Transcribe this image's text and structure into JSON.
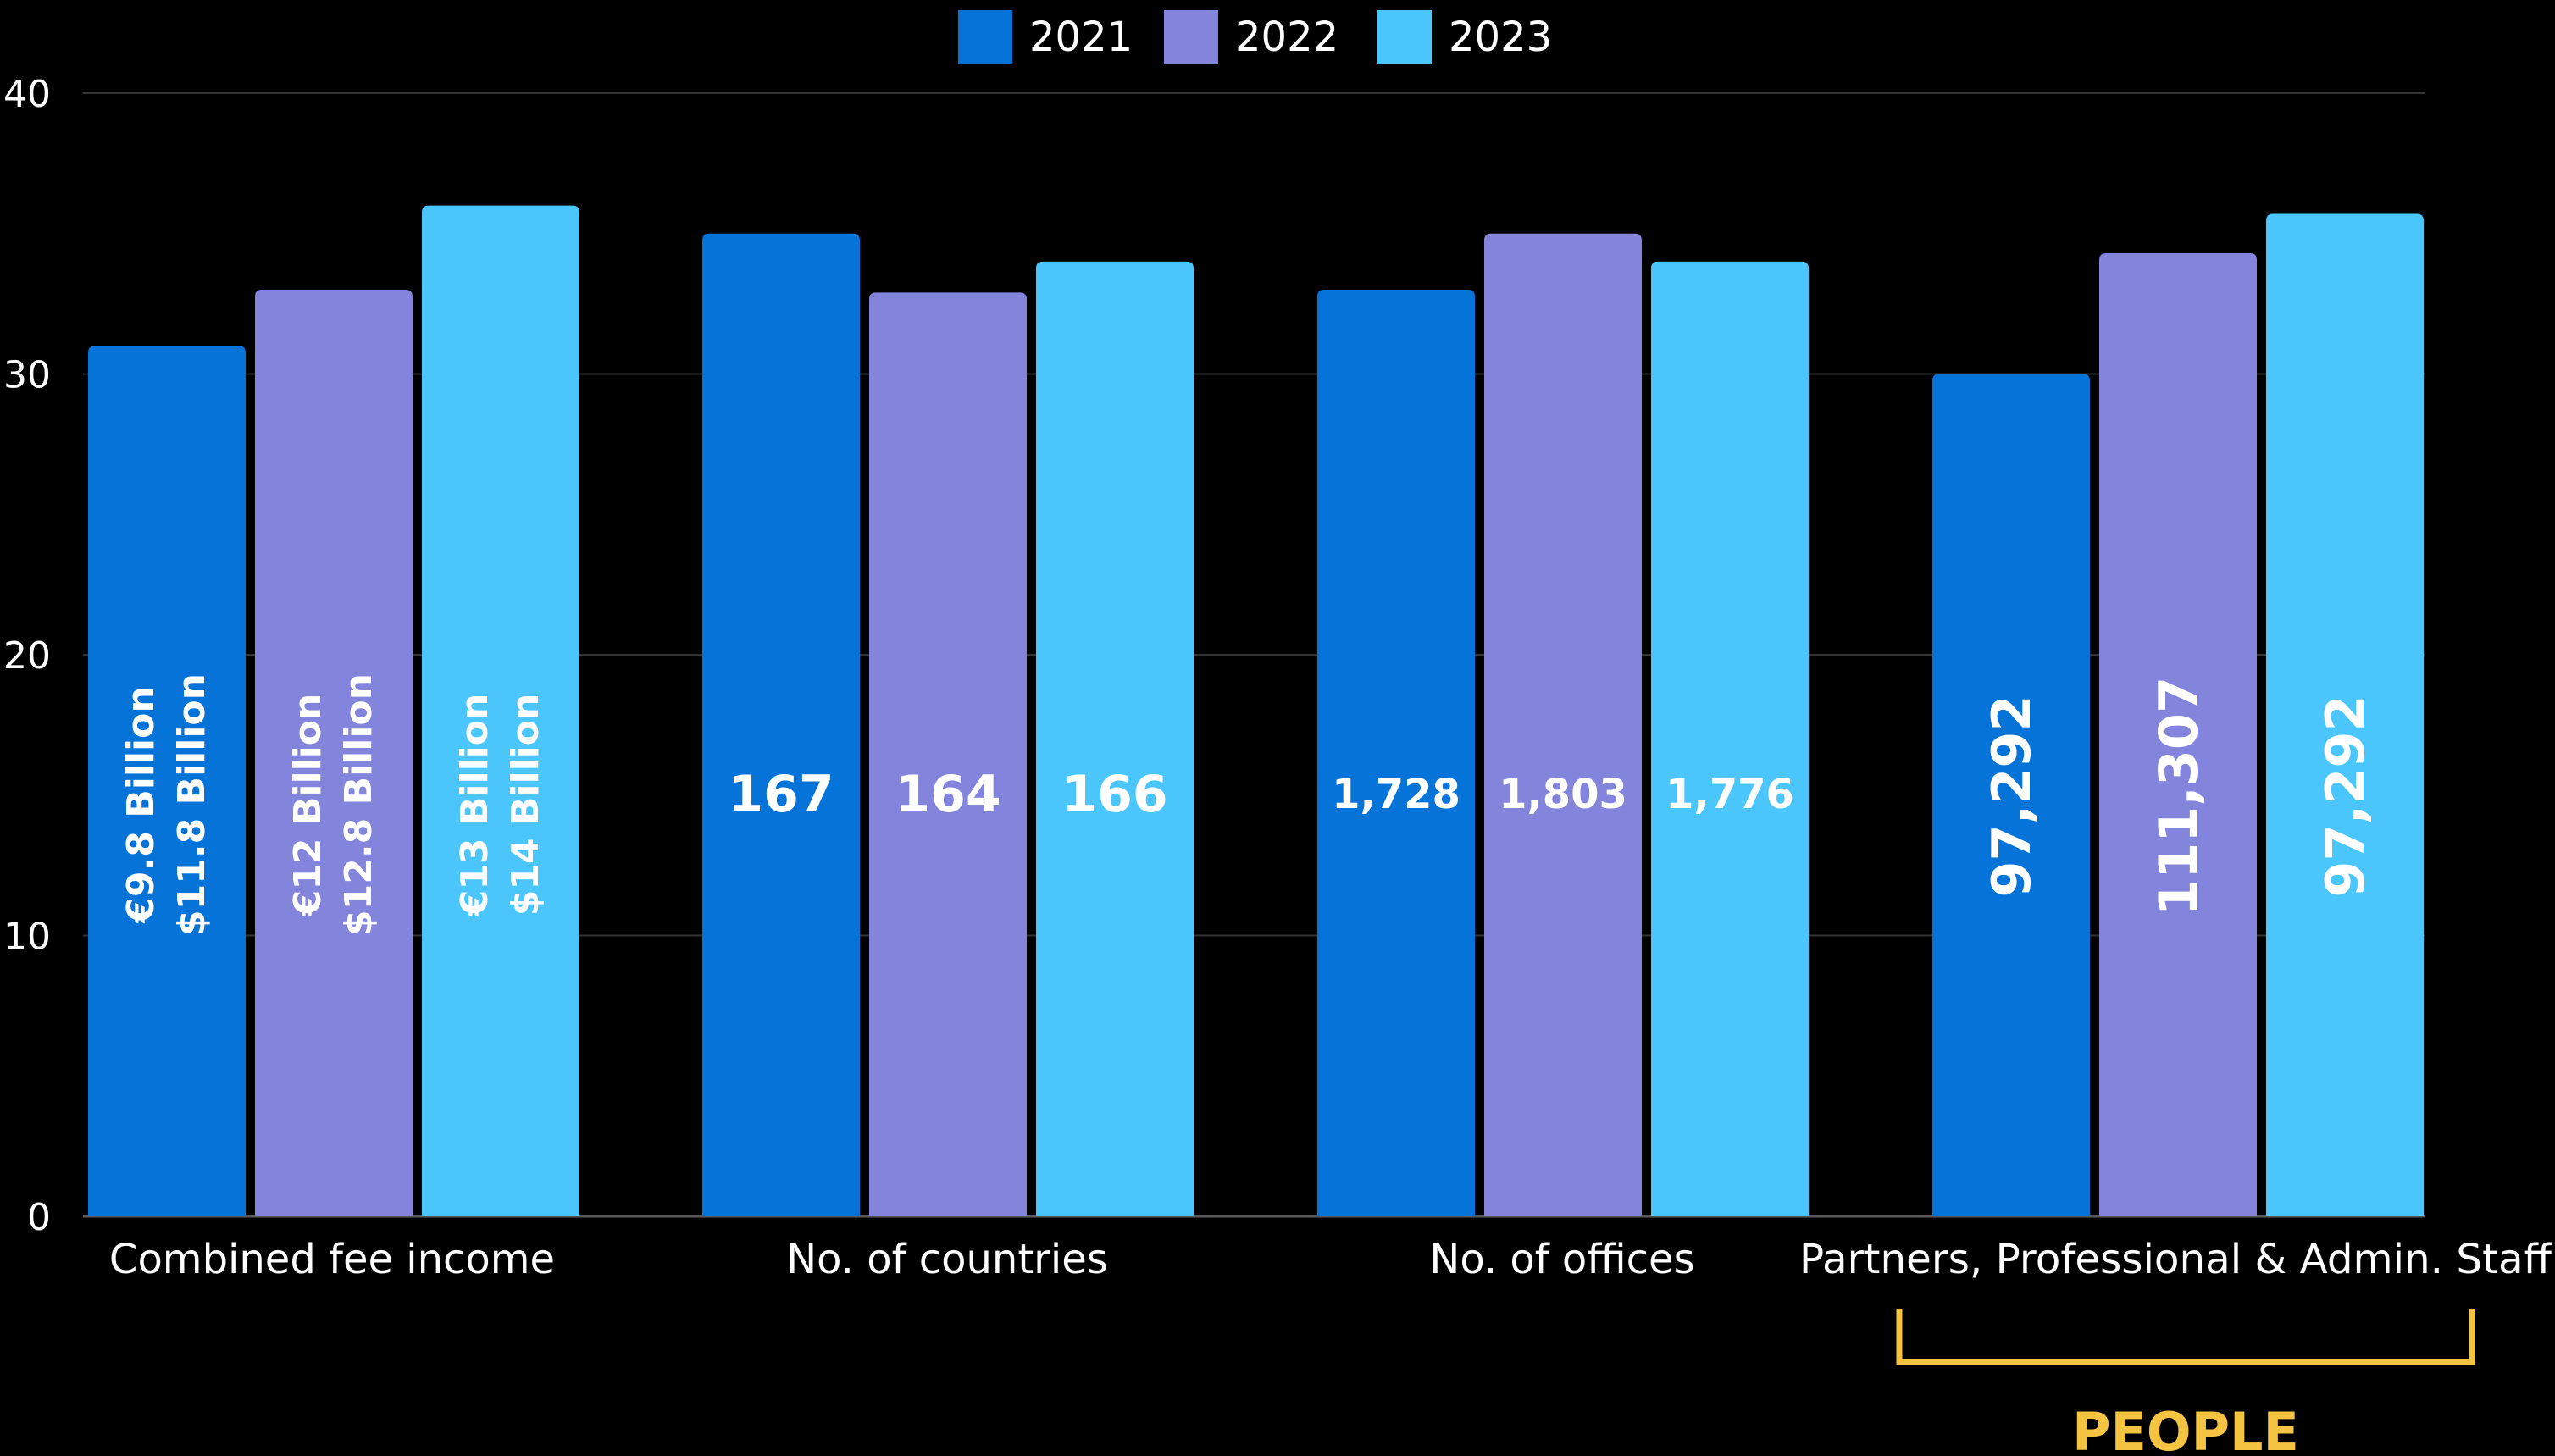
{
  "chart_data": {
    "type": "bar",
    "categories": [
      "Combined fee income",
      "No. of countries",
      "No. of offices",
      "Partners, Professional & Admin. Staff"
    ],
    "ylim": [
      0,
      40
    ],
    "yticks": [
      0,
      10,
      20,
      30,
      40
    ],
    "grid": true,
    "legend_position": "top-center",
    "series": [
      {
        "name": "2021",
        "color": "#0673d8",
        "values": [
          31,
          35,
          33,
          30
        ],
        "labels": [
          [
            "€9.8 Billion",
            "$11.8 Billion"
          ],
          [
            "167"
          ],
          [
            "1,728"
          ],
          [
            "97,292"
          ]
        ]
      },
      {
        "name": "2022",
        "color": "#8384dc",
        "values": [
          33,
          32.9,
          35,
          34.3
        ],
        "labels": [
          [
            "€12 Billion",
            "$12.8 Billion"
          ],
          [
            "164"
          ],
          [
            "1,803"
          ],
          [
            "111,307"
          ]
        ]
      },
      {
        "name": "2023",
        "color": "#4ac6fc",
        "values": [
          36,
          34,
          34,
          35.7
        ],
        "labels": [
          [
            "€13 Billion",
            "$14 Billion"
          ],
          [
            "166"
          ],
          [
            "1,776"
          ],
          [
            "97,292"
          ]
        ]
      }
    ],
    "annotations": [
      {
        "text": "PEOPLE",
        "color": "#f5c342",
        "category": "Partners, Professional & Admin. Staff"
      }
    ]
  }
}
